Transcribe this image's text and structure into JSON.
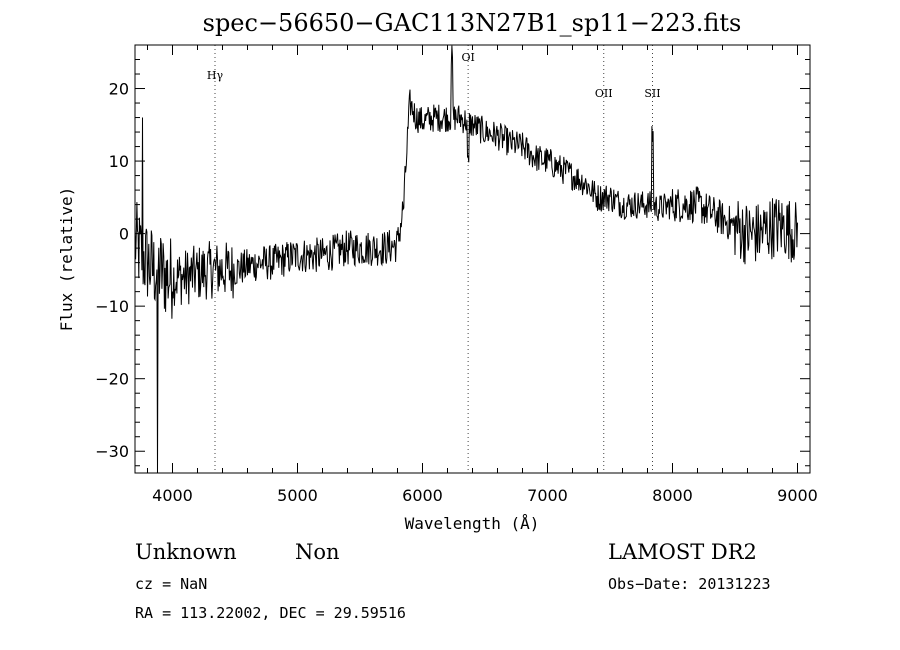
{
  "chart_data": {
    "type": "line",
    "title": "spec−56650−GAC113N27B1_sp11−223.fits",
    "xlabel": "Wavelength (Å)",
    "ylabel": "Flux (relative)",
    "xlim": [
      3700,
      9100
    ],
    "ylim": [
      -33,
      26
    ],
    "x_ticks": [
      4000,
      5000,
      6000,
      7000,
      8000,
      9000
    ],
    "x_tick_labels": [
      "4000",
      "5000",
      "6000",
      "7000",
      "8000",
      "9000"
    ],
    "y_ticks": [
      -30,
      -20,
      -10,
      0,
      10,
      20
    ],
    "y_tick_labels": [
      "−30",
      "−20",
      "−10",
      "0",
      "10",
      "20"
    ],
    "grid": false,
    "series": [
      {
        "x": [
          3700,
          3750,
          3800,
          3850,
          3900,
          3950,
          4000,
          4100,
          4200,
          4300,
          4400,
          4500,
          4600,
          4700,
          4800,
          4900,
          5000,
          5100,
          5200,
          5300,
          5400,
          5500,
          5600,
          5700,
          5800,
          5850,
          5880,
          5900,
          5950,
          6000,
          6100,
          6200,
          6300,
          6400,
          6500,
          6600,
          6700,
          6800,
          6900,
          7000,
          7100,
          7200,
          7300,
          7400,
          7500,
          7600,
          7700,
          7800,
          7900,
          8000,
          8100,
          8200,
          8300,
          8400,
          8500,
          8600,
          8700,
          8800,
          8900,
          9000
        ],
        "y": [
          -1,
          -3,
          -4,
          -5,
          -5,
          -6,
          -6,
          -6,
          -5.5,
          -5,
          -5,
          -5,
          -4.5,
          -4,
          -4,
          -3.5,
          -3,
          -3,
          -3,
          -2.5,
          -2,
          -2,
          -2,
          -2,
          -1.5,
          4,
          13,
          18,
          16,
          15.5,
          16,
          16,
          16,
          15,
          14,
          13.5,
          12.5,
          12,
          10.5,
          10,
          9,
          8,
          7,
          5,
          5,
          4,
          4,
          4,
          3.5,
          4,
          4,
          4,
          3,
          2,
          1,
          0,
          0,
          1,
          1,
          0
        ]
      }
    ],
    "emission_lines": [
      {
        "label": "Hγ",
        "x": 4340
      },
      {
        "label": "OI",
        "x": 6365
      },
      {
        "label": "OII",
        "x": 7450
      },
      {
        "label": "SII",
        "x": 7840
      }
    ]
  },
  "info": {
    "class_label": "Unknown",
    "subclass_label": "Non",
    "cz_text": "cz = NaN",
    "coords_text": "RA = 113.22002, DEC =  29.59516",
    "survey_label": "LAMOST DR2",
    "obs_date_text": "Obs−Date: 20131223"
  }
}
